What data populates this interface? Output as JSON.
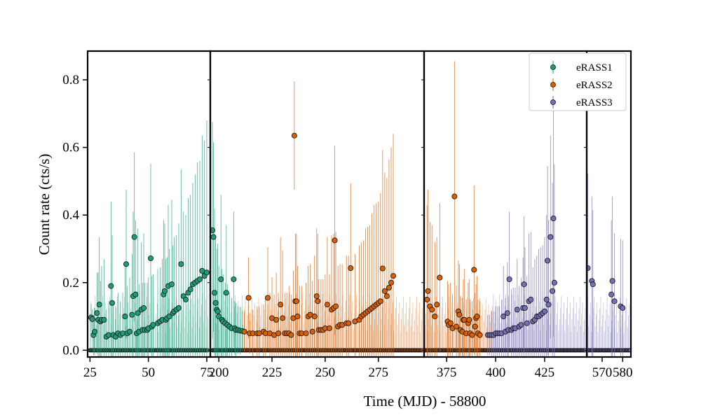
{
  "chart_data": {
    "type": "scatter",
    "xlabel": "Time (MJD) - 58800",
    "ylabel": "Count rate (cts/s)",
    "ylim": [
      -0.02,
      0.885
    ],
    "yticks": [
      0.0,
      0.2,
      0.4,
      0.6,
      0.8
    ],
    "ytick_labels": [
      "0.0",
      "0.2",
      "0.4",
      "0.6",
      "0.8"
    ],
    "legend_position": "top-right",
    "panels": [
      {
        "xlim": [
          24,
          76.5
        ],
        "xticks": [
          25,
          50,
          75
        ],
        "xtick_labels": [
          "25",
          "50",
          "75"
        ]
      },
      {
        "xlim": [
          196,
          296.5
        ],
        "xticks": [
          200,
          225,
          250,
          275
        ],
        "xtick_labels": [
          "200",
          "225",
          "250",
          "275"
        ]
      },
      {
        "xlim": [
          363.5,
          446.5
        ],
        "xticks": [
          375,
          400,
          425
        ],
        "xtick_labels": [
          "375",
          "400",
          "425"
        ]
      },
      {
        "xlim": [
          562.5,
          584
        ],
        "xticks": [
          570,
          580
        ],
        "xtick_labels": [
          "570",
          "580"
        ]
      }
    ],
    "series": [
      {
        "name": "eRASS1",
        "color": "#1b9e77",
        "zero_ranges": [
          [
            25,
            75.5
          ],
          [
            197,
            212
          ]
        ],
        "points": [
          [
            25.5,
            0.097,
            0.04
          ],
          [
            26,
            0.092,
            0.03
          ],
          [
            26.5,
            0.045,
            0.06
          ],
          [
            27,
            0.055,
            0.07
          ],
          [
            28,
            0.11,
            0.12
          ],
          [
            28.5,
            0.09,
            0.14
          ],
          [
            29,
            0.135,
            0.2
          ],
          [
            29.5,
            0.085,
            0.12
          ],
          [
            30,
            0.09,
            0.16
          ],
          [
            31,
            0.09,
            0.18
          ],
          [
            32,
            0.04,
            0.08
          ],
          [
            33,
            0.045,
            0.1
          ],
          [
            34,
            0.19,
            0.25
          ],
          [
            34.5,
            0.14,
            0.2
          ],
          [
            35,
            0.045,
            0.09
          ],
          [
            36,
            0.04,
            0.09
          ],
          [
            37,
            0.05,
            0.12
          ],
          [
            38,
            0.045,
            0.1
          ],
          [
            39,
            0.05,
            0.12
          ],
          [
            40,
            0.1,
            0.15
          ],
          [
            40.5,
            0.255,
            0.22
          ],
          [
            41,
            0.05,
            0.14
          ],
          [
            42,
            0.055,
            0.16
          ],
          [
            43,
            0.105,
            0.18
          ],
          [
            43.5,
            0.16,
            0.25
          ],
          [
            44,
            0.335,
            0.25
          ],
          [
            44.5,
            0.165,
            0.22
          ],
          [
            45,
            0.05,
            0.12
          ],
          [
            45.5,
            0.11,
            0.25
          ],
          [
            46,
            0.055,
            0.14
          ],
          [
            47,
            0.12,
            0.2
          ],
          [
            47.5,
            0.06,
            0.14
          ],
          [
            48,
            0.125,
            0.22
          ],
          [
            48.5,
            0.06,
            0.14
          ],
          [
            49.5,
            0.06,
            0.14
          ],
          [
            50,
            0.065,
            0.15
          ],
          [
            51,
            0.272,
            0.28
          ],
          [
            51.5,
            0.07,
            0.15
          ],
          [
            52,
            0.075,
            0.15
          ],
          [
            54,
            0.08,
            0.16
          ],
          [
            55,
            0.085,
            0.16
          ],
          [
            56,
            0.09,
            0.18
          ],
          [
            56.5,
            0.165,
            0.22
          ],
          [
            57,
            0.175,
            0.2
          ],
          [
            57.5,
            0.09,
            0.18
          ],
          [
            58,
            0.095,
            0.18
          ],
          [
            58.5,
            0.19,
            0.24
          ],
          [
            59,
            0.1,
            0.2
          ],
          [
            60,
            0.195,
            0.25
          ],
          [
            60.5,
            0.11,
            0.2
          ],
          [
            61,
            0.115,
            0.22
          ],
          [
            62,
            0.12,
            0.22
          ],
          [
            63,
            0.125,
            0.25
          ],
          [
            64,
            0.255,
            0.28
          ],
          [
            65,
            0.16,
            0.25
          ],
          [
            66,
            0.15,
            0.25
          ],
          [
            67,
            0.17,
            0.28
          ],
          [
            68,
            0.18,
            0.28
          ],
          [
            69,
            0.195,
            0.3
          ],
          [
            70,
            0.2,
            0.32
          ],
          [
            71,
            0.205,
            0.35
          ],
          [
            72,
            0.21,
            0.35
          ],
          [
            73,
            0.235,
            0.4
          ],
          [
            74,
            0.22,
            0.4
          ],
          [
            75,
            0.23,
            0.45
          ],
          [
            197,
            0.355,
            0.32
          ],
          [
            197.5,
            0.335,
            0.28
          ],
          [
            198,
            0.17,
            0.25
          ],
          [
            198.5,
            0.14,
            0.2
          ],
          [
            199,
            0.12,
            0.18
          ],
          [
            199.5,
            0.115,
            0.2
          ],
          [
            200,
            0.1,
            0.15
          ],
          [
            201,
            0.21,
            0.25
          ],
          [
            201.5,
            0.09,
            0.15
          ],
          [
            202,
            0.085,
            0.14
          ],
          [
            203,
            0.08,
            0.12
          ],
          [
            203.5,
            0.17,
            0.2
          ],
          [
            204,
            0.075,
            0.12
          ],
          [
            205,
            0.07,
            0.1
          ],
          [
            206,
            0.065,
            0.09
          ],
          [
            207,
            0.21,
            0.2
          ],
          [
            207.5,
            0.065,
            0.08
          ],
          [
            208,
            0.06,
            0.08
          ],
          [
            209,
            0.06,
            0.07
          ],
          [
            210,
            0.058,
            0.07
          ],
          [
            211,
            0.057,
            0.06
          ]
        ]
      },
      {
        "name": "eRASS2",
        "color": "#d95f02",
        "zero_ranges": [
          [
            212,
            296
          ],
          [
            364,
            398
          ]
        ],
        "points": [
          [
            212,
            0.055,
            0.06
          ],
          [
            214,
            0.155,
            0.12
          ],
          [
            214.5,
            0.05,
            0.06
          ],
          [
            216,
            0.05,
            0.07
          ],
          [
            218,
            0.05,
            0.08
          ],
          [
            219,
            0.05,
            0.08
          ],
          [
            221,
            0.055,
            0.08
          ],
          [
            222,
            0.05,
            0.1
          ],
          [
            223,
            0.155,
            0.15
          ],
          [
            224,
            0.05,
            0.12
          ],
          [
            225,
            0.095,
            0.12
          ],
          [
            226,
            0.045,
            0.12
          ],
          [
            227,
            0.09,
            0.14
          ],
          [
            228,
            0.05,
            0.12
          ],
          [
            229,
            0.135,
            0.2
          ],
          [
            230,
            0.095,
            0.2
          ],
          [
            231,
            0.05,
            0.12
          ],
          [
            232,
            0.05,
            0.12
          ],
          [
            233,
            0.05,
            0.14
          ],
          [
            234,
            0.045,
            0.12
          ],
          [
            235,
            0.095,
            0.14
          ],
          [
            235.5,
            0.635,
            0.16
          ],
          [
            236,
            0.145,
            0.2
          ],
          [
            236.5,
            0.145,
            0.2
          ],
          [
            237,
            0.1,
            0.15
          ],
          [
            238,
            0.05,
            0.14
          ],
          [
            239,
            0.05,
            0.14
          ],
          [
            241,
            0.05,
            0.15
          ],
          [
            242,
            0.1,
            0.15
          ],
          [
            243,
            0.105,
            0.15
          ],
          [
            244,
            0.055,
            0.15
          ],
          [
            245,
            0.1,
            0.18
          ],
          [
            246,
            0.16,
            0.2
          ],
          [
            246.5,
            0.145,
            0.2
          ],
          [
            247,
            0.06,
            0.15
          ],
          [
            248,
            0.06,
            0.15
          ],
          [
            249,
            0.06,
            0.15
          ],
          [
            250,
            0.065,
            0.16
          ],
          [
            251,
            0.135,
            0.2
          ],
          [
            252,
            0.065,
            0.16
          ],
          [
            253,
            0.12,
            0.22
          ],
          [
            254,
            0.125,
            0.22
          ],
          [
            254.5,
            0.325,
            0.28
          ],
          [
            255,
            0.13,
            0.22
          ],
          [
            256,
            0.07,
            0.18
          ],
          [
            257,
            0.075,
            0.18
          ],
          [
            258,
            0.075,
            0.18
          ],
          [
            260,
            0.08,
            0.2
          ],
          [
            261,
            0.08,
            0.2
          ],
          [
            262,
            0.243,
            0.25
          ],
          [
            264,
            0.085,
            0.2
          ],
          [
            266,
            0.09,
            0.22
          ],
          [
            267,
            0.1,
            0.22
          ],
          [
            268,
            0.105,
            0.22
          ],
          [
            269,
            0.11,
            0.25
          ],
          [
            270,
            0.115,
            0.25
          ],
          [
            271,
            0.12,
            0.25
          ],
          [
            272,
            0.125,
            0.28
          ],
          [
            273,
            0.13,
            0.3
          ],
          [
            274,
            0.135,
            0.3
          ],
          [
            275,
            0.14,
            0.3
          ],
          [
            276,
            0.145,
            0.32
          ],
          [
            277,
            0.242,
            0.35
          ],
          [
            278,
            0.175,
            0.35
          ],
          [
            279,
            0.16,
            0.35
          ],
          [
            280,
            0.185,
            0.38
          ],
          [
            281,
            0.2,
            0.4
          ],
          [
            282,
            0.22,
            0.42
          ],
          [
            365,
            0.15,
            0.28
          ],
          [
            365.5,
            0.175,
            0.3
          ],
          [
            366.5,
            0.13,
            0.25
          ],
          [
            367.5,
            0.12,
            0.25
          ],
          [
            369,
            0.1,
            0.22
          ],
          [
            370,
            0.135,
            0.2
          ],
          [
            371.5,
            0.215,
            0.22
          ],
          [
            375.5,
            0.085,
            0.12
          ],
          [
            376,
            0.075,
            0.12
          ],
          [
            377,
            0.08,
            0.12
          ],
          [
            378,
            0.065,
            0.1
          ],
          [
            379,
            0.455,
            0.4
          ],
          [
            380,
            0.07,
            0.12
          ],
          [
            381,
            0.115,
            0.15
          ],
          [
            381.5,
            0.105,
            0.15
          ],
          [
            382,
            0.06,
            0.1
          ],
          [
            383,
            0.055,
            0.1
          ],
          [
            383.5,
            0.09,
            0.12
          ],
          [
            384,
            0.09,
            0.15
          ],
          [
            385,
            0.05,
            0.1
          ],
          [
            386,
            0.08,
            0.12
          ],
          [
            386.5,
            0.09,
            0.12
          ],
          [
            387,
            0.05,
            0.1
          ],
          [
            388,
            0.045,
            0.1
          ],
          [
            389,
            0.238,
            0.25
          ],
          [
            389.5,
            0.07,
            0.1
          ],
          [
            390,
            0.095,
            0.1
          ],
          [
            390.5,
            0.1,
            0.12
          ],
          [
            391,
            0.05,
            0.1
          ],
          [
            392,
            0.045,
            0.1
          ]
        ]
      },
      {
        "name": "eRASS3",
        "color": "#7570b3",
        "zero_ranges": [
          [
            398,
            446
          ],
          [
            563,
            584
          ]
        ],
        "points": [
          [
            396,
            0.045,
            0.06
          ],
          [
            397,
            0.045,
            0.06
          ],
          [
            398,
            0.045,
            0.07
          ],
          [
            399,
            0.045,
            0.07
          ],
          [
            400,
            0.05,
            0.08
          ],
          [
            401,
            0.05,
            0.08
          ],
          [
            402,
            0.05,
            0.08
          ],
          [
            403,
            0.05,
            0.1
          ],
          [
            404,
            0.1,
            0.15
          ],
          [
            405,
            0.055,
            0.1
          ],
          [
            406,
            0.11,
            0.15
          ],
          [
            406.5,
            0.06,
            0.1
          ],
          [
            407,
            0.21,
            0.2
          ],
          [
            408,
            0.06,
            0.12
          ],
          [
            409,
            0.065,
            0.12
          ],
          [
            410,
            0.065,
            0.12
          ],
          [
            411,
            0.12,
            0.15
          ],
          [
            412,
            0.07,
            0.12
          ],
          [
            413,
            0.075,
            0.14
          ],
          [
            414,
            0.125,
            0.15
          ],
          [
            414.5,
            0.195,
            0.2
          ],
          [
            415,
            0.125,
            0.18
          ],
          [
            416,
            0.08,
            0.14
          ],
          [
            417,
            0.145,
            0.2
          ],
          [
            418,
            0.15,
            0.2
          ],
          [
            419,
            0.085,
            0.16
          ],
          [
            420,
            0.09,
            0.18
          ],
          [
            421,
            0.1,
            0.18
          ],
          [
            422,
            0.1,
            0.2
          ],
          [
            423,
            0.105,
            0.2
          ],
          [
            424,
            0.11,
            0.2
          ],
          [
            425,
            0.115,
            0.22
          ],
          [
            426,
            0.15,
            0.25
          ],
          [
            426.5,
            0.265,
            0.28
          ],
          [
            427,
            0.135,
            0.25
          ],
          [
            428,
            0.335,
            0.3
          ],
          [
            429,
            0.175,
            0.32
          ],
          [
            429.5,
            0.39,
            0.35
          ],
          [
            430,
            0.2,
            0.35
          ],
          [
            563,
            0.243,
            0.28
          ],
          [
            565,
            0.205,
            0.25
          ],
          [
            565.5,
            0.195,
            0.22
          ],
          [
            574.5,
            0.165,
            0.22
          ],
          [
            575,
            0.205,
            0.25
          ],
          [
            576,
            0.145,
            0.2
          ],
          [
            579,
            0.13,
            0.2
          ],
          [
            580,
            0.125,
            0.2
          ]
        ]
      }
    ]
  }
}
